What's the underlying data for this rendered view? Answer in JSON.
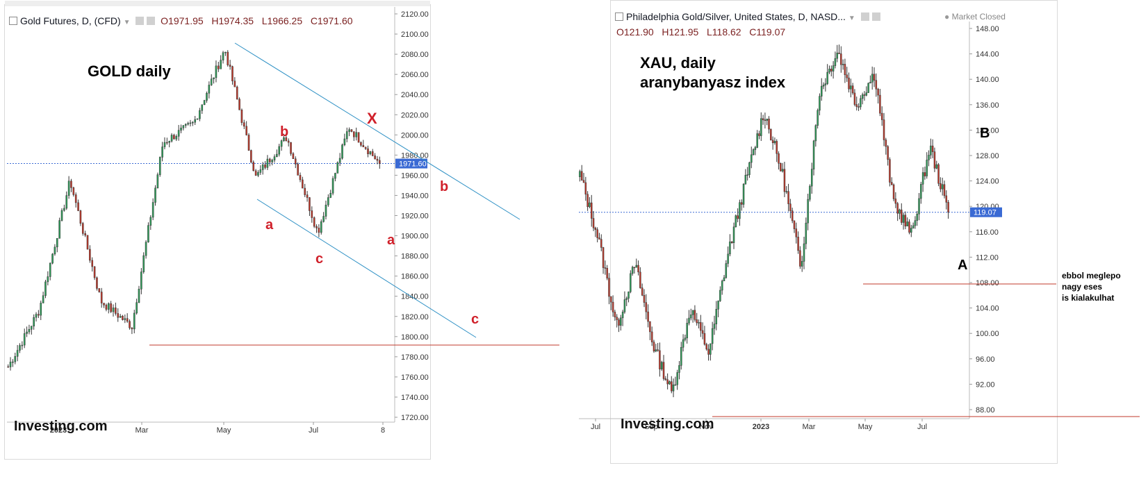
{
  "left": {
    "header": {
      "title": "Gold Futures, D, (CFD)",
      "open": "O1971.95",
      "high": "H1974.35",
      "low": "L1966.25",
      "close": "C1971.60"
    },
    "watermark": "Investing.com",
    "price_tag": "1971.60",
    "annotation_title": "GOLD daily",
    "wave_labels": {
      "a1": "a",
      "b1": "b",
      "c1": "c",
      "x": "X",
      "b2": "b",
      "a2": "a",
      "c2": "c"
    }
  },
  "right": {
    "header": {
      "title": "Philadelphia Gold/Silver, United States, D, NASD...",
      "status": "Market Closed",
      "open": "O121.90",
      "high": "H121.95",
      "low": "L118.62",
      "close": "C119.07"
    },
    "watermark": "Investing.com",
    "price_tag": "119.07",
    "annotation_title_line1": "XAU, daily",
    "annotation_title_line2": "aranybanyasz index",
    "wave_labels": {
      "A": "A",
      "B": "B"
    },
    "note_line1": "ebbol meglepo",
    "note_line2": "nagy eses",
    "note_line3": "is kialakulhat"
  },
  "colors": {
    "up": "#2f9e5a",
    "down": "#c0392b",
    "trendline": "#2b8fc4",
    "support": "#c0392b",
    "price_line": "#3a6ad4",
    "label_red": "#d0202a"
  },
  "chart_data": [
    {
      "type": "candlestick",
      "title": "Gold Futures, D, (CFD)",
      "ylim": [
        1720,
        2120
      ],
      "y_ticks": [
        "2120.00",
        "2100.00",
        "2080.00",
        "2060.00",
        "2040.00",
        "2020.00",
        "2000.00",
        "1980.00",
        "1960.00",
        "1940.00",
        "1920.00",
        "1900.00",
        "1880.00",
        "1860.00",
        "1840.00",
        "1820.00",
        "1800.00",
        "1780.00",
        "1760.00",
        "1740.00",
        "1720.00"
      ],
      "x_ticks": [
        "2023",
        "Mar",
        "May",
        "Jul",
        "8"
      ],
      "last_price": 1971.6,
      "support_level": 1807,
      "series": [
        {
          "x": "Dec",
          "y": 1770
        },
        {
          "x": "2023",
          "y": 1826
        },
        {
          "x": "Feb",
          "y": 1955
        },
        {
          "x": "Feb",
          "y": 1835
        },
        {
          "x": "Mar",
          "y": 1810
        },
        {
          "x": "Mar",
          "y": 1992
        },
        {
          "x": "Apr",
          "y": 2012
        },
        {
          "x": "May",
          "y": 2085
        },
        {
          "x": "May",
          "y": 1958
        },
        {
          "x": "Jun",
          "y": 1998
        },
        {
          "x": "Jul",
          "y": 1903
        },
        {
          "x": "Jul",
          "y": 2008
        },
        {
          "x": "Jul",
          "y": 1971.6
        }
      ]
    },
    {
      "type": "candlestick",
      "title": "Philadelphia Gold/Silver, United States, D, NASD...",
      "ylim": [
        88,
        148
      ],
      "y_ticks": [
        "148.00",
        "144.00",
        "140.00",
        "136.00",
        "132.00",
        "128.00",
        "124.00",
        "120.00",
        "116.00",
        "112.00",
        "108.00",
        "104.00",
        "100.00",
        "96.00",
        "92.00",
        "88.00"
      ],
      "x_ticks": [
        "Jul",
        "Sep",
        "Nov",
        "2023",
        "Mar",
        "May",
        "Jul"
      ],
      "last_price": 119.07,
      "support_level": 110.2,
      "series": [
        {
          "x": "Jun",
          "y": 125
        },
        {
          "x": "Jul",
          "y": 115
        },
        {
          "x": "Aug",
          "y": 101
        },
        {
          "x": "Aug",
          "y": 111
        },
        {
          "x": "Sep",
          "y": 98
        },
        {
          "x": "Sep",
          "y": 90.5
        },
        {
          "x": "Oct",
          "y": 104
        },
        {
          "x": "Oct",
          "y": 97
        },
        {
          "x": "Nov",
          "y": 112
        },
        {
          "x": "Dec",
          "y": 124
        },
        {
          "x": "2023",
          "y": 135
        },
        {
          "x": "Feb",
          "y": 125
        },
        {
          "x": "Mar",
          "y": 110.5
        },
        {
          "x": "Apr",
          "y": 138
        },
        {
          "x": "Apr",
          "y": 144.5
        },
        {
          "x": "May",
          "y": 136
        },
        {
          "x": "May",
          "y": 141
        },
        {
          "x": "Jun",
          "y": 121
        },
        {
          "x": "Jun",
          "y": 115.5
        },
        {
          "x": "Jul",
          "y": 129.5
        },
        {
          "x": "Jul",
          "y": 119.07
        }
      ]
    }
  ]
}
